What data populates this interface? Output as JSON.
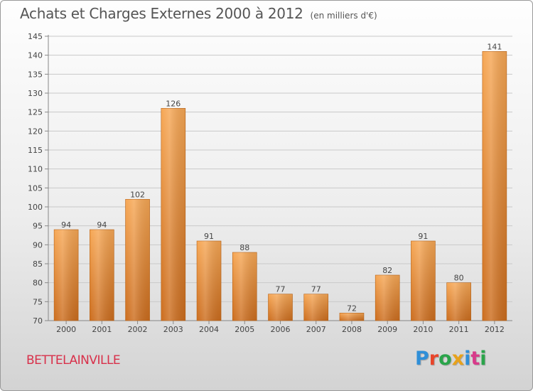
{
  "header": {
    "title": "Achats et Charges Externes 2000 à 2012",
    "subtitle": "(en milliers d'€)"
  },
  "footer": {
    "commune": "BETTELAINVILLE",
    "logo": {
      "text": "Proxiti",
      "colors": [
        "#2f8fd8",
        "#e8452a",
        "#2aa44a",
        "#e8a21b",
        "#2f8fd8",
        "#d83a8a",
        "#2aa44a"
      ]
    }
  },
  "colors": {
    "bar_top": "#f6a755",
    "bar_bottom": "#cc6d1e",
    "commune": "#d8304a",
    "axis": "#888888",
    "grid": "#c9c9c9",
    "text": "#444444"
  },
  "chart_data": {
    "type": "bar",
    "title": "Achats et Charges Externes 2000 à 2012",
    "subtitle": "(en milliers d'€)",
    "categories": [
      "2000",
      "2001",
      "2002",
      "2003",
      "2004",
      "2005",
      "2006",
      "2007",
      "2008",
      "2009",
      "2010",
      "2011",
      "2012"
    ],
    "values": [
      94,
      94,
      102,
      126,
      91,
      88,
      77,
      77,
      72,
      82,
      91,
      80,
      141
    ],
    "ylim": [
      70,
      145
    ],
    "yticks": [
      70,
      75,
      80,
      85,
      90,
      95,
      100,
      105,
      110,
      115,
      120,
      125,
      130,
      135,
      140,
      145
    ],
    "xlabel": "",
    "ylabel": "",
    "grid": true,
    "data_labels": true
  }
}
